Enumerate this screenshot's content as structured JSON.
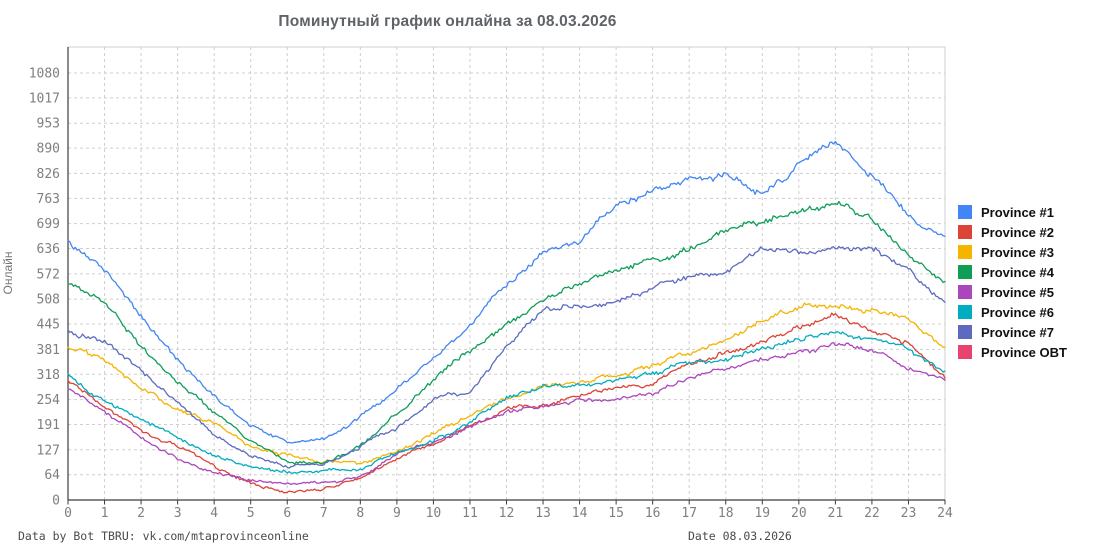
{
  "title": "Поминутный график онлайна за 08.03.2026",
  "y_axis_title": "Онлайн",
  "footer": {
    "left": "Data by Bot TBRU: vk.com/mtaprovinceonline",
    "right": "Date 08.03.2026"
  },
  "style": {
    "grid_color": "#cfcfcf",
    "axis_color": "#3c3c3c",
    "border_color": "#cfcfcf",
    "tick_label_color": "#7f7f7f",
    "title_color": "#5f6368"
  },
  "chart_data": {
    "type": "line",
    "title": "Поминутный график онлайна за 08.03.2026",
    "xlabel": "",
    "ylabel": "Онлайн",
    "xlim": [
      0,
      24
    ],
    "ylim": [
      0,
      1146
    ],
    "grid": true,
    "legend_position": "right",
    "x_ticks": [
      0,
      1,
      2,
      3,
      4,
      5,
      6,
      7,
      8,
      9,
      10,
      11,
      12,
      13,
      14,
      15,
      16,
      17,
      18,
      19,
      20,
      21,
      22,
      23,
      24
    ],
    "y_ticks": [
      0,
      64,
      127,
      191,
      254,
      318,
      381,
      445,
      508,
      572,
      636,
      699,
      763,
      826,
      890,
      953,
      1017,
      1080
    ],
    "x": [
      0,
      1,
      2,
      3,
      4,
      5,
      6,
      7,
      8,
      9,
      10,
      11,
      12,
      13,
      14,
      15,
      16,
      17,
      18,
      19,
      20,
      21,
      22,
      23,
      24
    ],
    "series": [
      {
        "name": "Province #1",
        "color": "#4285F4",
        "values": [
          650,
          585,
          470,
          350,
          262,
          190,
          148,
          152,
          210,
          280,
          355,
          440,
          550,
          620,
          650,
          745,
          775,
          810,
          815,
          780,
          850,
          905,
          815,
          725,
          660
        ]
      },
      {
        "name": "Province #2",
        "color": "#DB4437",
        "values": [
          300,
          240,
          180,
          138,
          87,
          42,
          20,
          30,
          55,
          103,
          140,
          192,
          230,
          240,
          268,
          290,
          295,
          345,
          374,
          403,
          437,
          472,
          429,
          398,
          310
        ]
      },
      {
        "name": "Province #3",
        "color": "#F4B400",
        "values": [
          385,
          350,
          285,
          230,
          192,
          135,
          112,
          100,
          96,
          125,
          165,
          215,
          257,
          292,
          300,
          318,
          345,
          372,
          400,
          458,
          487,
          497,
          479,
          455,
          380
        ]
      },
      {
        "name": "Province #4",
        "color": "#0F9D58",
        "values": [
          545,
          500,
          390,
          300,
          218,
          148,
          102,
          92,
          140,
          215,
          300,
          375,
          440,
          510,
          548,
          582,
          610,
          635,
          685,
          705,
          722,
          750,
          715,
          610,
          553
        ]
      },
      {
        "name": "Province #5",
        "color": "#AB47BC",
        "values": [
          280,
          222,
          154,
          103,
          69,
          48,
          42,
          44,
          60,
          112,
          142,
          192,
          228,
          235,
          248,
          257,
          268,
          305,
          327,
          357,
          370,
          386,
          378,
          332,
          308
        ]
      },
      {
        "name": "Province #6",
        "color": "#00ACC1",
        "values": [
          318,
          252,
          205,
          162,
          116,
          87,
          70,
          72,
          80,
          117,
          148,
          198,
          258,
          288,
          293,
          300,
          318,
          350,
          357,
          386,
          403,
          418,
          408,
          386,
          328
        ]
      },
      {
        "name": "Province #7",
        "color": "#5C6BC0",
        "values": [
          430,
          400,
          330,
          248,
          163,
          113,
          85,
          90,
          135,
          185,
          260,
          272,
          395,
          478,
          490,
          500,
          540,
          568,
          578,
          638,
          622,
          648,
          640,
          580,
          497
        ]
      },
      {
        "name": "Province OBT",
        "color": "#E8436F",
        "values": []
      }
    ]
  }
}
